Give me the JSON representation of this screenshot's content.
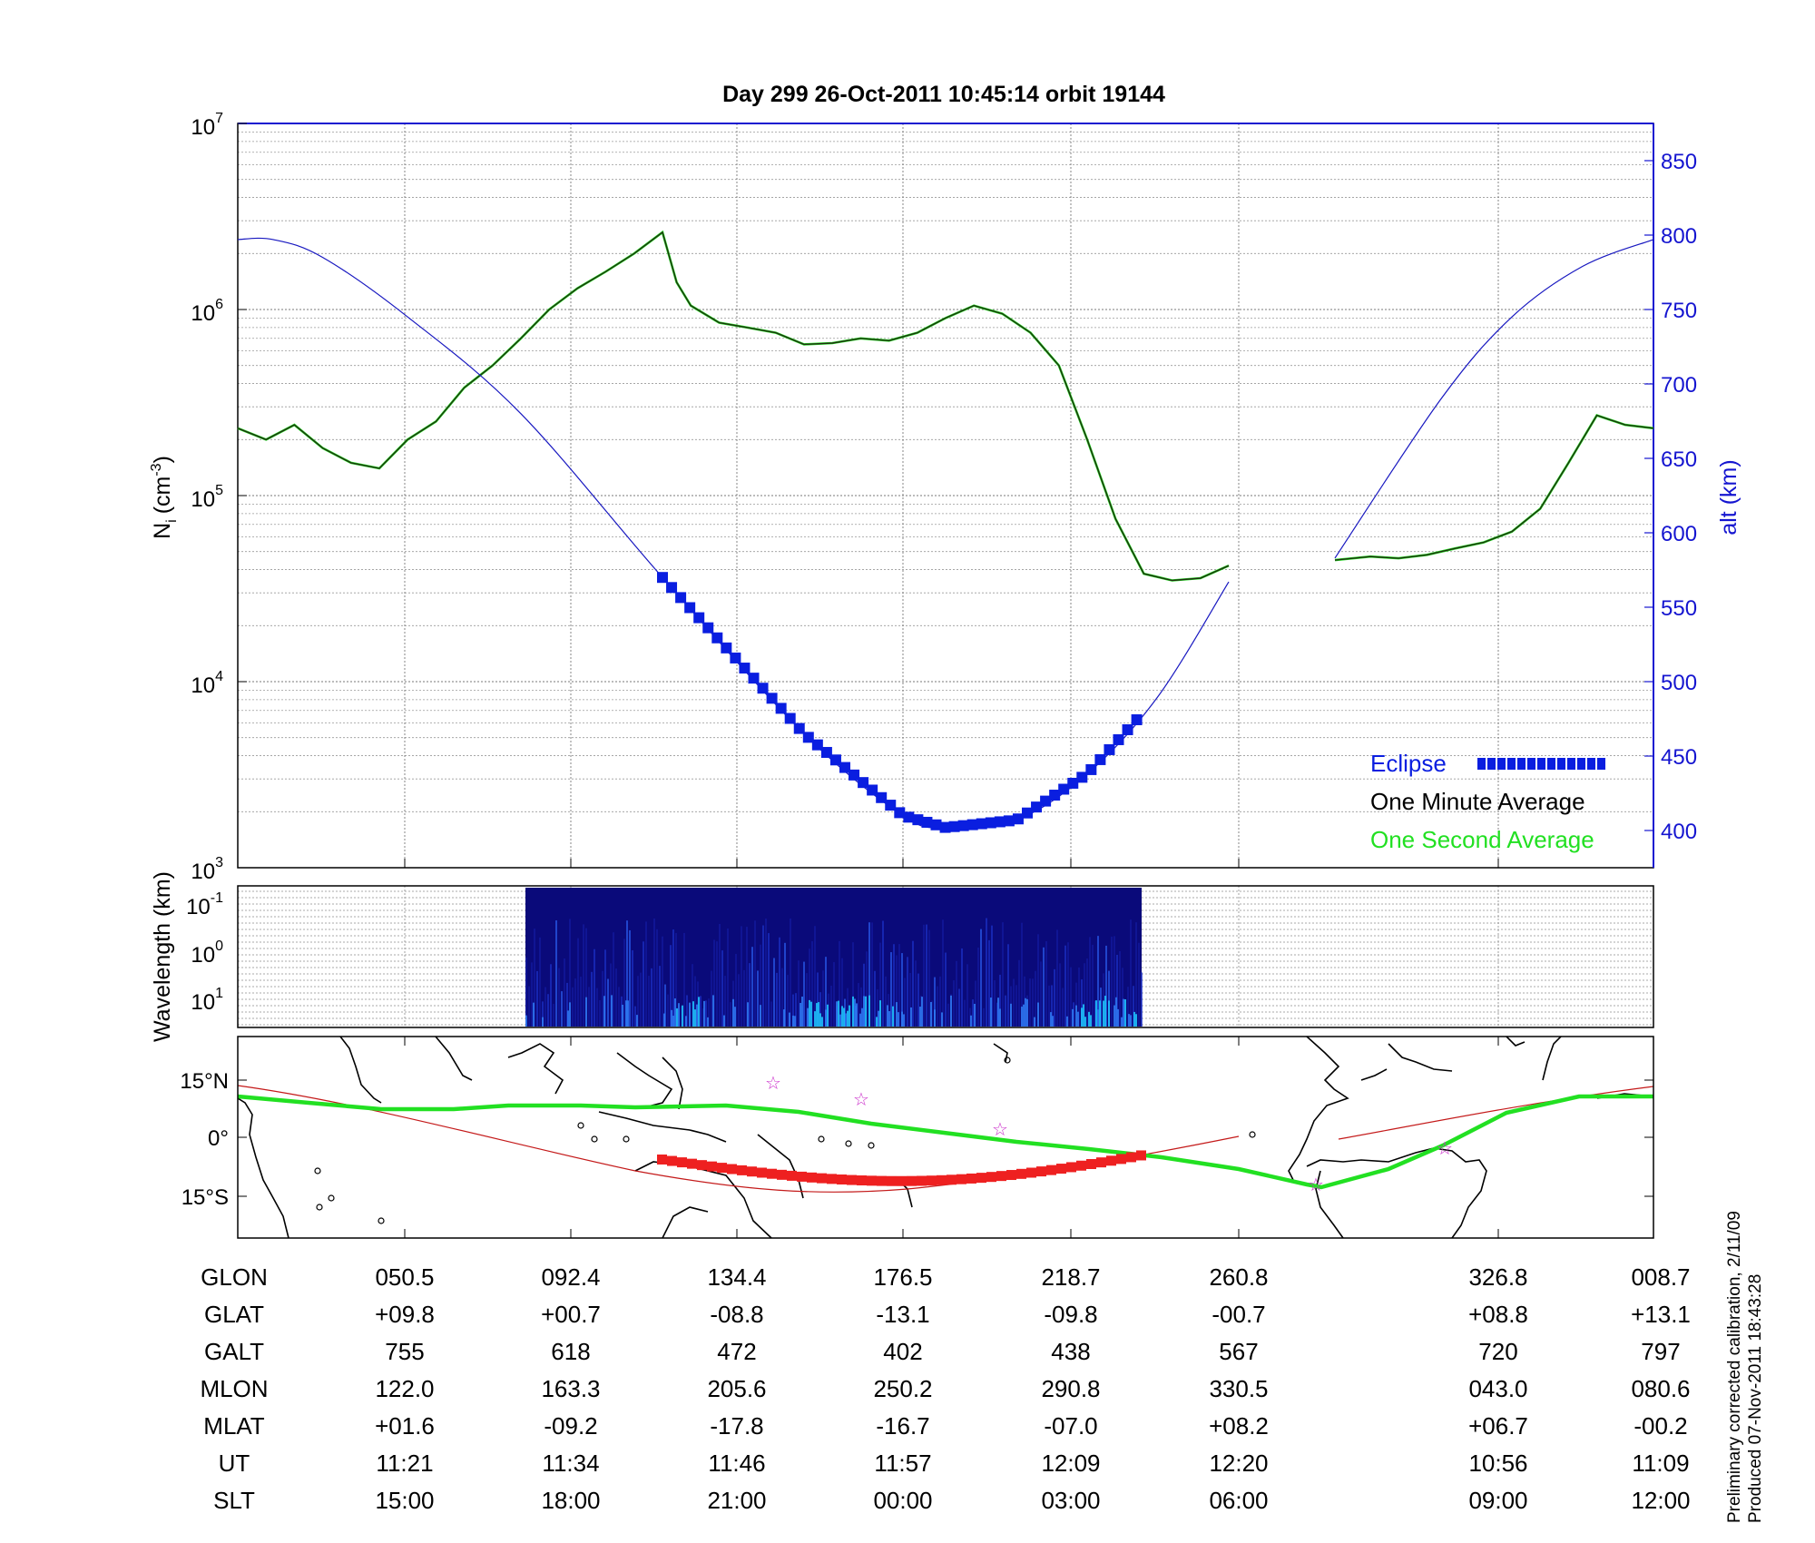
{
  "title": "Day 299  26-Oct-2011 10:45:14   orbit 19144",
  "top_panel": {
    "ylabel_left": "N",
    "ylabel_left_sub": "i",
    "ylabel_left_unit": "(cm",
    "ylabel_left_unit_sup": "-3",
    "ylabel_left_close": ")",
    "ylabel_right": "alt (km)",
    "left_ticks": [
      {
        "base": "10",
        "exp": "3",
        "value": 1000
      },
      {
        "base": "10",
        "exp": "4",
        "value": 10000
      },
      {
        "base": "10",
        "exp": "5",
        "value": 100000
      },
      {
        "base": "10",
        "exp": "6",
        "value": 1000000
      },
      {
        "base": "10",
        "exp": "7",
        "value": 10000000
      }
    ],
    "right_ticks": [
      "400",
      "450",
      "500",
      "550",
      "600",
      "650",
      "700",
      "750",
      "800",
      "850"
    ]
  },
  "legend": {
    "eclipse": "Eclipse",
    "one_minute": "One Minute Average",
    "one_second": "One Second Average"
  },
  "colors": {
    "eclipse": "#0a1ee0",
    "one_minute": "#1f2f10",
    "one_second": "#22e022",
    "altitude": "#1818c0",
    "axis_right": "#1515d0",
    "track_eclipse": "#ee2020",
    "footprint": "#22e022",
    "spectrogram_dark": "#0a0a7a",
    "spectrogram_light": "#1ec8ff",
    "star": "#cc33cc"
  },
  "mid_panel": {
    "ylabel": "Wavelength (km)",
    "ticks": [
      {
        "base": "10",
        "exp": "-1"
      },
      {
        "base": "10",
        "exp": "0"
      },
      {
        "base": "10",
        "exp": "1"
      }
    ]
  },
  "map_panel": {
    "lat_ticks": [
      "15°N",
      "0°",
      "15°S"
    ]
  },
  "chart_data": {
    "type": "line",
    "x_label": "",
    "y_scale": "log",
    "ylim": [
      1000,
      10000000
    ],
    "y2lim": [
      375,
      875
    ],
    "series": [
      {
        "name": "One Minute Average",
        "axis": "left",
        "x": [
          0,
          0.02,
          0.04,
          0.06,
          0.08,
          0.1,
          0.12,
          0.14,
          0.16,
          0.18,
          0.2,
          0.22,
          0.24,
          0.26,
          0.28,
          0.3,
          0.31,
          0.32,
          0.34,
          0.36,
          0.38,
          0.4,
          0.42,
          0.44,
          0.46,
          0.48,
          0.5,
          0.52,
          0.54,
          0.56,
          0.58,
          0.6,
          0.62,
          0.64,
          0.66,
          0.68,
          0.7,
          0.72,
          0.74,
          null,
          0.775,
          0.8,
          0.82,
          0.84,
          0.86,
          0.88,
          0.9,
          0.92,
          0.94,
          0.96,
          0.98,
          1.0
        ],
        "y": [
          230000,
          200000,
          240000,
          180000,
          150000,
          140000,
          200000,
          250000,
          380000,
          500000,
          700000,
          1000000,
          1300000,
          1600000,
          2000000,
          2600000,
          1400000,
          1050000,
          850000,
          800000,
          750000,
          650000,
          660000,
          700000,
          680000,
          750000,
          900000,
          1050000,
          950000,
          750000,
          500000,
          200000,
          75000,
          38000,
          35000,
          36000,
          42000,
          null,
          null,
          null,
          45000,
          47000,
          46000,
          48000,
          52000,
          56000,
          64000,
          85000,
          150000,
          270000,
          240000,
          230000
        ]
      },
      {
        "name": "alt (km)",
        "axis": "right",
        "x": [
          0,
          0.025,
          0.06,
          0.12,
          0.2,
          0.3,
          0.4,
          0.47,
          0.5,
          0.55,
          0.6,
          0.65,
          0.7,
          0.775,
          0.85,
          0.9,
          0.95,
          1.0
        ],
        "y": [
          797,
          797,
          785,
          745,
          680,
          570,
          465,
          410,
          402,
          407,
          438,
          490,
          567,
          583,
          690,
          745,
          779,
          797
        ]
      },
      {
        "name": "Eclipse",
        "axis": "right",
        "x_range": [
          0.3,
          0.635
        ],
        "y_minimum": 402
      }
    ],
    "x_ticks": {
      "GLON": [
        "050.5",
        "092.4",
        "134.4",
        "176.5",
        "218.7",
        "260.8",
        "326.8",
        "008.7"
      ],
      "GLAT": [
        "+09.8",
        "+00.7",
        "-08.8",
        "-13.1",
        "-09.8",
        "-00.7",
        "+08.8",
        "+13.1"
      ],
      "GALT": [
        "755",
        "618",
        "472",
        "402",
        "438",
        "567",
        "720",
        "797"
      ],
      "MLON": [
        "122.0",
        "163.3",
        "205.6",
        "250.2",
        "290.8",
        "330.5",
        "043.0",
        "080.6"
      ],
      "MLAT": [
        "+01.6",
        "-09.2",
        "-17.8",
        "-16.7",
        "-07.0",
        "+08.2",
        "+06.7",
        "-00.2"
      ],
      "UT": [
        "11:21",
        "11:34",
        "11:46",
        "11:57",
        "12:09",
        "12:20",
        "10:56",
        "11:09"
      ],
      "SLT": [
        "15:00",
        "18:00",
        "21:00",
        "00:00",
        "03:00",
        "06:00",
        "09:00",
        "12:00"
      ]
    }
  },
  "table": {
    "row_labels": [
      "GLON",
      "GLAT",
      "GALT",
      "MLON",
      "MLAT",
      "UT",
      "SLT"
    ]
  },
  "footnote": {
    "line1": "Preliminary corrected calibration, 2/11/09",
    "line2": "Produced 07-Nov-2011 18:43:28"
  }
}
